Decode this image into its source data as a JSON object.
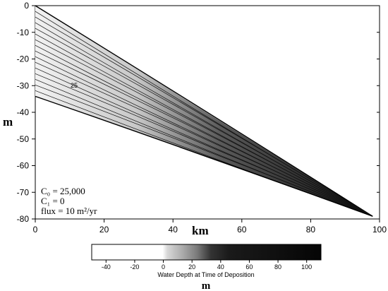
{
  "chart_data": [
    {
      "type": "area",
      "ylabel": "m",
      "xlabel": "km",
      "xlim": [
        0,
        100
      ],
      "ylim": [
        -80,
        0
      ],
      "x_ticks": [
        0,
        20,
        40,
        60,
        80,
        100
      ],
      "y_ticks": [
        0,
        -10,
        -20,
        -30,
        -40,
        -50,
        -60,
        -70,
        -80
      ],
      "contour_label": "25",
      "surfaces": [
        {
          "x": [
            0,
            98
          ],
          "y": [
            0,
            -79
          ]
        },
        {
          "x": [
            0,
            98
          ],
          "y": [
            -34,
            -79
          ]
        }
      ],
      "annotations": [
        "C₀ = 25,000",
        "C₁ = 0",
        "flux = 10  m²/yr"
      ]
    },
    {
      "type": "heatmap",
      "xlabel": "Water Depth at Time of Deposition",
      "unit_label": "m",
      "x_ticks": [
        -40,
        -20,
        0,
        20,
        40,
        60,
        80,
        100
      ],
      "range": [
        -50,
        110
      ]
    }
  ]
}
